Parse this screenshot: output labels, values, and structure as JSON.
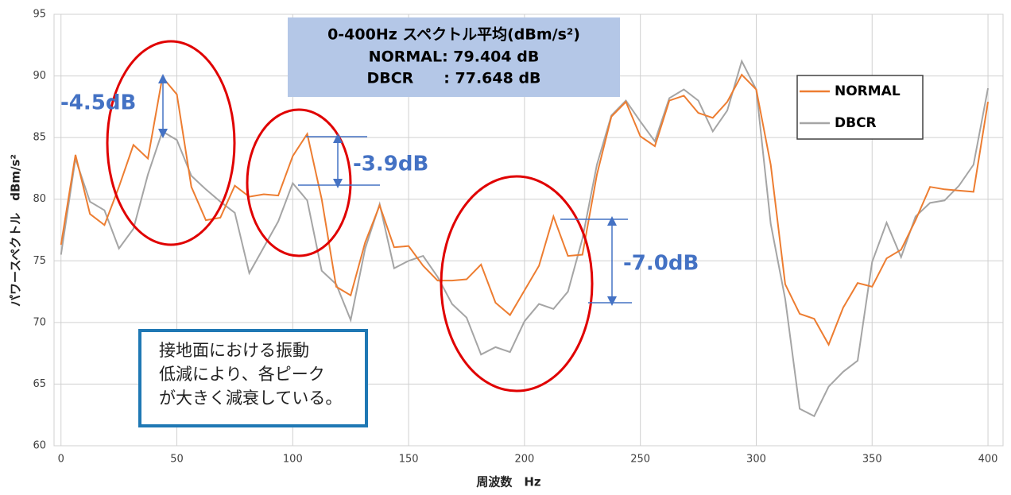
{
  "chart_data": {
    "type": "line",
    "x_label": "周波数　Hz",
    "y_label": "パワースペクトル　dBm/s²",
    "x": [
      0,
      6.25,
      12.5,
      18.75,
      25,
      31.25,
      37.5,
      43.75,
      50,
      56.25,
      62.5,
      68.75,
      75,
      81.25,
      87.5,
      93.75,
      100,
      106.25,
      112.5,
      118.75,
      125,
      131.25,
      137.5,
      143.75,
      150,
      156.25,
      162.5,
      168.75,
      175,
      181.25,
      187.5,
      193.75,
      200,
      206.25,
      212.5,
      218.75,
      225,
      231.25,
      237.5,
      243.75,
      250,
      256.25,
      262.5,
      268.75,
      275,
      281.25,
      287.5,
      293.75,
      300,
      306.25,
      312.5,
      318.75,
      325,
      331.25,
      337.5,
      343.75,
      350,
      356.25,
      362.5,
      368.75,
      375,
      381.25,
      387.5,
      393.75,
      400
    ],
    "series": [
      {
        "name": "NORMAL",
        "color": "#ed7d31",
        "values": [
          76.3,
          83.6,
          78.8,
          77.9,
          81.0,
          84.4,
          83.3,
          89.9,
          88.5,
          81.0,
          78.3,
          78.5,
          81.1,
          80.2,
          80.4,
          80.3,
          83.5,
          85.3,
          80.0,
          72.9,
          72.2,
          76.5,
          79.5,
          76.1,
          76.2,
          74.6,
          73.4,
          73.4,
          73.5,
          74.7,
          71.6,
          70.6,
          72.6,
          74.6,
          78.6,
          75.4,
          75.5,
          82.0,
          86.7,
          87.9,
          85.1,
          84.3,
          88.0,
          88.4,
          87.0,
          86.6,
          87.9,
          90.1,
          88.9,
          82.8,
          73.1,
          70.7,
          70.3,
          68.2,
          71.2,
          73.2,
          72.9,
          75.2,
          75.9,
          78.3,
          81.0,
          80.8,
          80.7,
          80.6,
          87.9
        ]
      },
      {
        "name": "DBCR",
        "color": "#a5a5a5",
        "values": [
          75.5,
          83.3,
          79.8,
          79.1,
          76.0,
          77.6,
          82.0,
          85.5,
          84.8,
          81.9,
          80.8,
          79.8,
          78.9,
          74.0,
          76.1,
          78.2,
          81.3,
          79.9,
          74.2,
          73.1,
          70.2,
          76.0,
          79.6,
          74.4,
          75.0,
          75.4,
          73.7,
          71.5,
          70.4,
          67.4,
          68.0,
          67.6,
          70.1,
          71.5,
          71.1,
          72.5,
          76.8,
          82.8,
          86.8,
          88.0,
          86.3,
          84.7,
          88.2,
          88.9,
          88.0,
          85.5,
          87.2,
          91.2,
          88.9,
          78.0,
          71.9,
          63.0,
          62.4,
          64.8,
          66.0,
          66.9,
          74.9,
          78.1,
          75.3,
          78.6,
          79.7,
          79.9,
          81.1,
          82.8,
          89.0
        ]
      }
    ],
    "xlim": [
      -3,
      406.5
    ],
    "ylim": [
      60,
      95
    ],
    "xticks": [
      0,
      50,
      100,
      150,
      200,
      250,
      300,
      350,
      400
    ],
    "yticks": [
      60,
      65,
      70,
      75,
      80,
      85,
      90,
      95
    ],
    "grid": true,
    "legend": "upper right",
    "annotations": {
      "summary_title": "0-400Hz スペクトル平均(dBm/s²)",
      "summary_normal": "NORMAL: 79.404 dB",
      "summary_dbcr": "DBCR　　:  77.648 dB",
      "diff1": "-4.5dB",
      "diff2": "-3.9dB",
      "diff3": "-7.0dB",
      "comment": [
        "接地面における振動",
        "低減により、各ピーク",
        "が大きく減衰している。"
      ]
    }
  }
}
